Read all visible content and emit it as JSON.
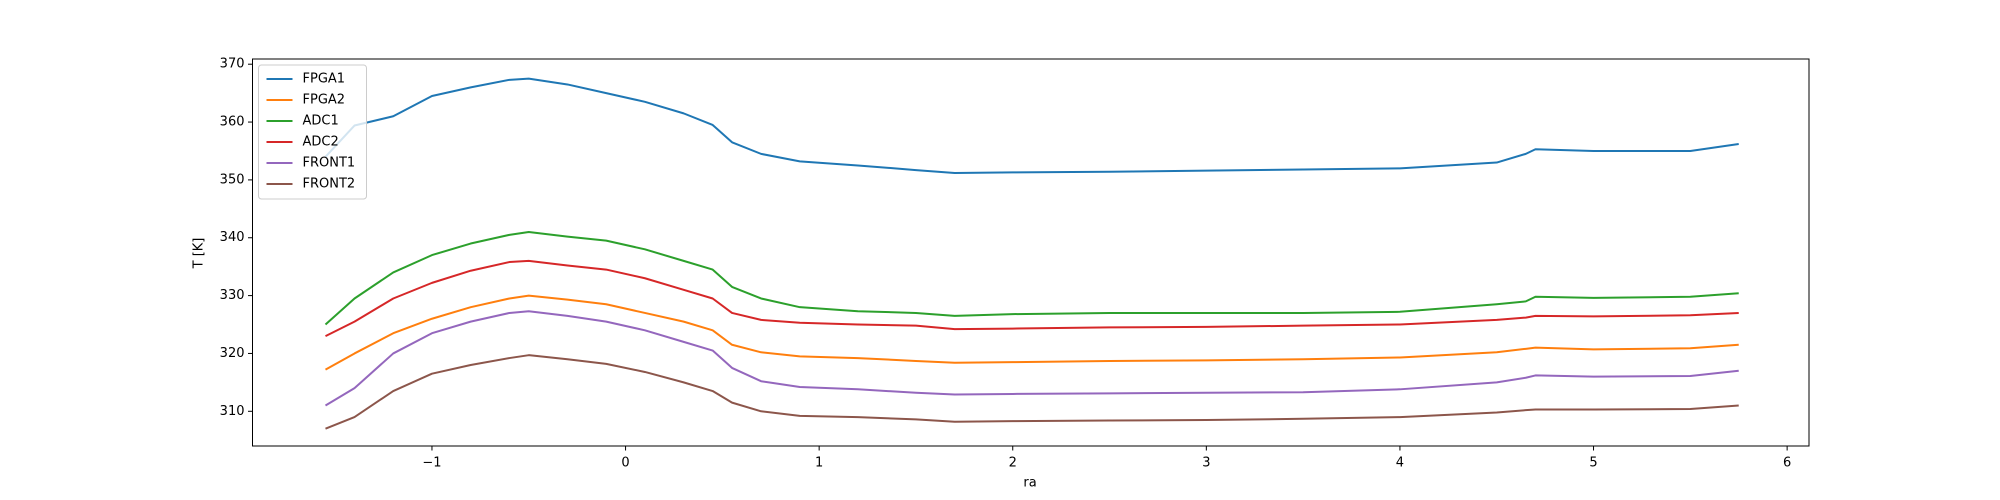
{
  "chart_data": {
    "type": "line",
    "xlabel": "ra",
    "ylabel": "T [K]",
    "x": [
      -1.55,
      -1.4,
      -1.2,
      -1.0,
      -0.8,
      -0.6,
      -0.5,
      -0.3,
      -0.1,
      0.1,
      0.3,
      0.45,
      0.55,
      0.7,
      0.9,
      1.2,
      1.5,
      1.7,
      2.0,
      2.5,
      3.0,
      3.5,
      4.0,
      4.5,
      4.65,
      4.7,
      5.0,
      5.5,
      5.75
    ],
    "series": [
      {
        "name": "FPGA1",
        "color": "#1f77b4",
        "values": [
          354,
          359.4,
          361,
          364.5,
          366,
          367.3,
          367.5,
          366.5,
          365,
          363.5,
          361.5,
          359.5,
          356.5,
          354.5,
          353.2,
          352.5,
          351.7,
          351.2,
          351.3,
          351.4,
          351.6,
          351.8,
          352.0,
          353.0,
          354.5,
          355.3,
          355.0,
          355.0,
          356.2
        ]
      },
      {
        "name": "FPGA2",
        "color": "#ff7f0e",
        "values": [
          317.2,
          320,
          323.5,
          326,
          328,
          329.5,
          330,
          329.3,
          328.5,
          327,
          325.5,
          324,
          321.5,
          320.2,
          319.5,
          319.2,
          318.7,
          318.4,
          318.5,
          318.7,
          318.8,
          319,
          319.3,
          320.2,
          320.8,
          321,
          320.7,
          320.9,
          321.5
        ]
      },
      {
        "name": "ADC1",
        "color": "#2ca02c",
        "values": [
          325,
          329.5,
          334,
          337,
          339,
          340.5,
          341,
          340.2,
          339.5,
          338,
          336,
          334.5,
          331.5,
          329.5,
          328,
          327.3,
          327,
          326.5,
          326.8,
          327,
          327,
          327,
          327.2,
          328.5,
          329,
          329.8,
          329.6,
          329.8,
          330.4
        ]
      },
      {
        "name": "ADC2",
        "color": "#d62728",
        "values": [
          323,
          325.5,
          329.5,
          332.2,
          334.3,
          335.8,
          336,
          335.2,
          334.5,
          333,
          331,
          329.5,
          327,
          325.8,
          325.3,
          325,
          324.8,
          324.2,
          324.3,
          324.5,
          324.6,
          324.8,
          325,
          325.8,
          326.2,
          326.5,
          326.4,
          326.6,
          327
        ]
      },
      {
        "name": "FRONT1",
        "color": "#9467bd",
        "values": [
          311,
          314,
          320,
          323.5,
          325.5,
          327,
          327.3,
          326.5,
          325.5,
          324,
          322,
          320.5,
          317.5,
          315.2,
          314.2,
          313.8,
          313.2,
          312.9,
          313,
          313.1,
          313.2,
          313.3,
          313.8,
          315,
          315.8,
          316.2,
          316,
          316.1,
          317
        ]
      },
      {
        "name": "FRONT2",
        "color": "#8c564b",
        "values": [
          307,
          309,
          313.5,
          316.5,
          318,
          319.2,
          319.7,
          319,
          318.2,
          316.8,
          315,
          313.5,
          311.5,
          310,
          309.2,
          309,
          308.6,
          308.2,
          308.3,
          308.4,
          308.5,
          308.7,
          309,
          309.8,
          310.2,
          310.3,
          310.3,
          310.4,
          311
        ]
      }
    ],
    "xlim": [
      -1.927,
      6.113
    ],
    "xticks": [
      {
        "value": -1,
        "label": "−1"
      },
      0,
      1,
      2,
      3,
      4,
      5,
      6
    ],
    "ylim": [
      304.0,
      370.9
    ],
    "yticks": [
      310,
      320,
      330,
      340,
      350,
      360,
      370
    ],
    "legend": "upper left"
  }
}
